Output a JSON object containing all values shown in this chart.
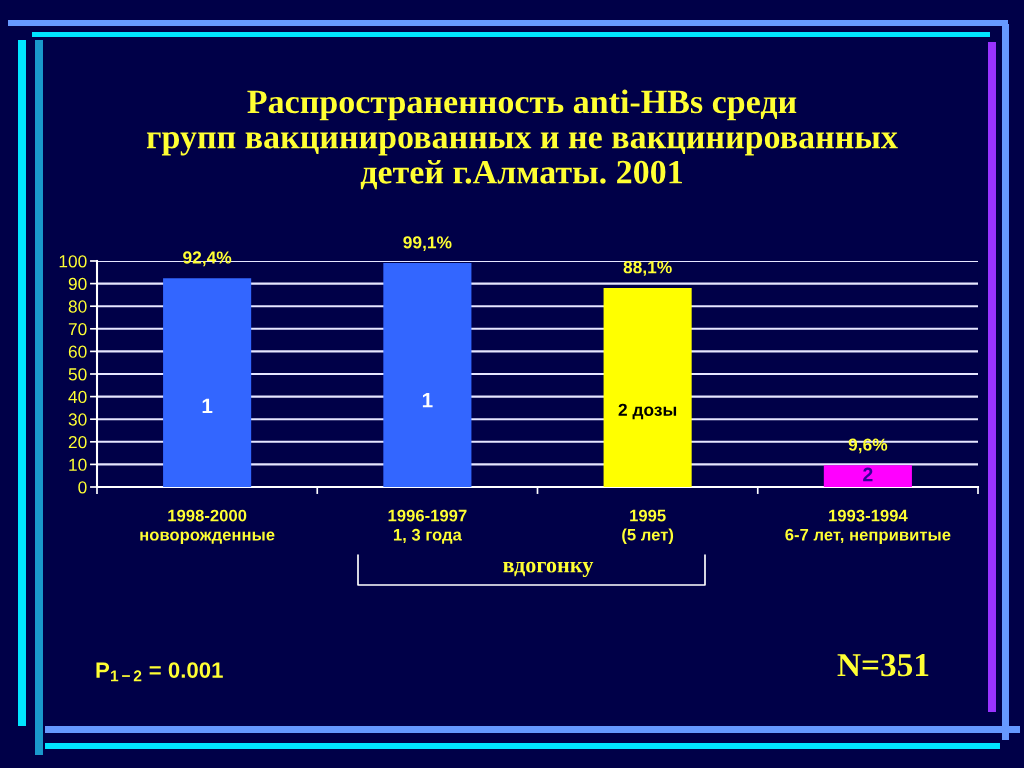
{
  "chart_data": {
    "type": "bar",
    "title": "Распространенность anti-HBs среди\nгрупп вакцинированных и не вакцинированных\nдетей г.Алматы. 2001",
    "categories": [
      "1998-2000\nноворожденные",
      "1996-1997\n1, 3 года",
      "1995\n(5 лет)",
      "1993-1994\n6-7 лет, непривитые"
    ],
    "values": [
      92.4,
      99.1,
      88.1,
      9.6
    ],
    "colors": [
      "#3366ff",
      "#3366ff",
      "#ffff00",
      "#ff00ff"
    ],
    "value_labels": [
      "92,4%",
      "99,1%",
      "88,1%",
      "9,6%"
    ],
    "ylim": [
      0,
      100
    ],
    "yticks": [
      0,
      10,
      20,
      30,
      40,
      50,
      60,
      70,
      80,
      90,
      100
    ],
    "grid": "y",
    "annotations": [
      "1",
      "1",
      "2 дозы",
      "2",
      "вдогонку",
      "P$_{1−2}$ = 0.001",
      "N=351"
    ]
  }
}
